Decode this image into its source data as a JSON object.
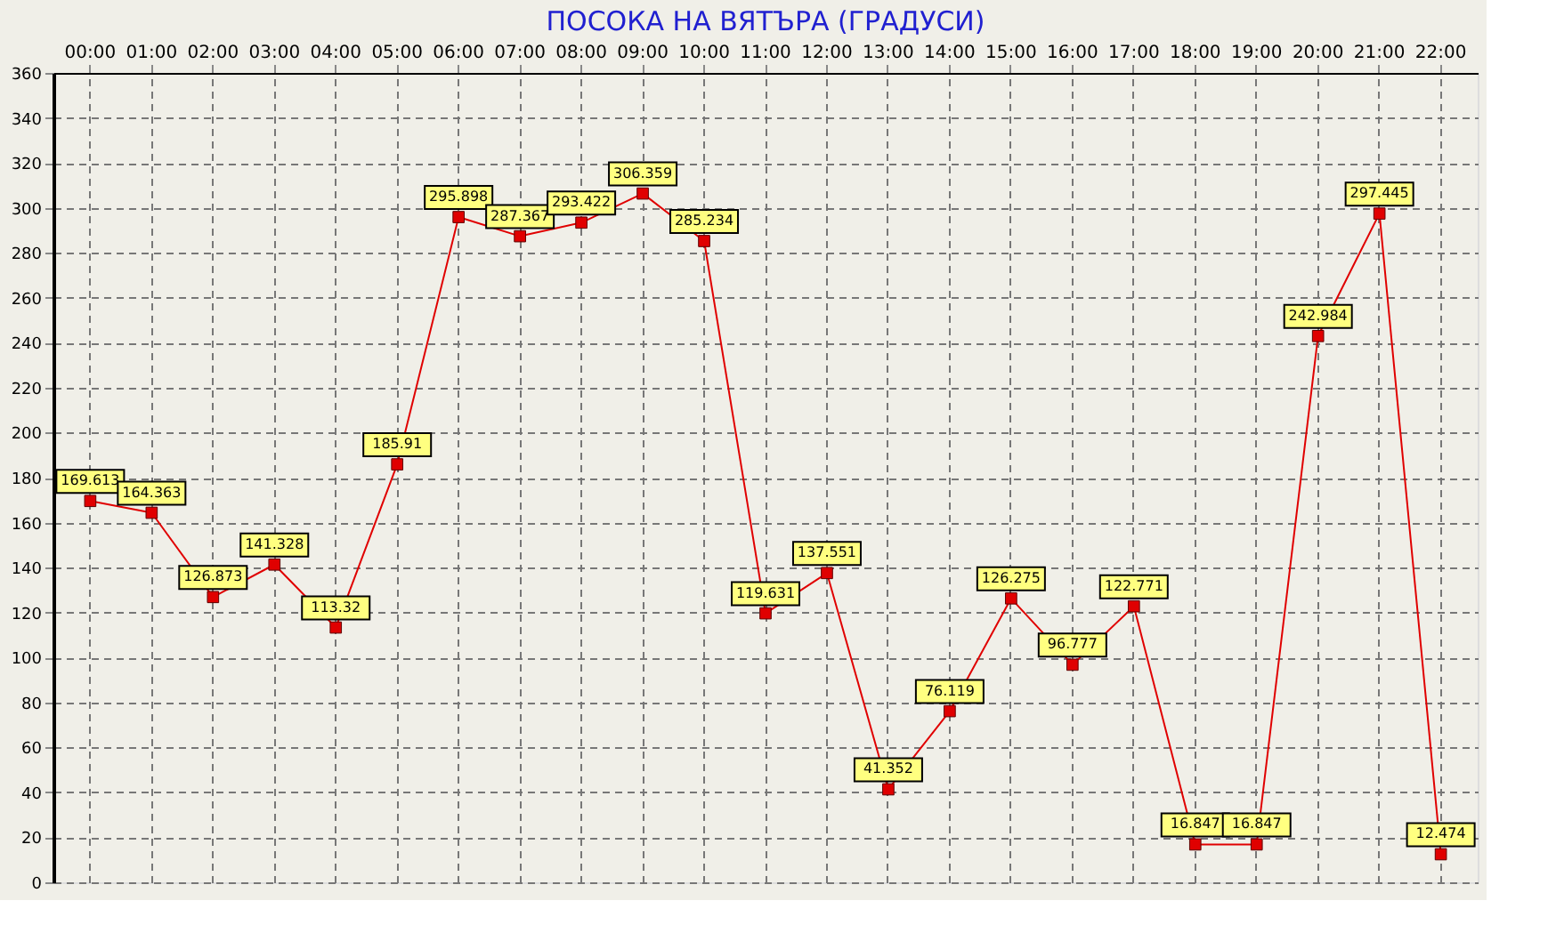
{
  "chart_data": {
    "type": "line",
    "title": "ПОСОКА НА ВЯТЪРА    (ГРАДУСИ)",
    "categories": [
      "00:00",
      "01:00",
      "02:00",
      "03:00",
      "04:00",
      "05:00",
      "06:00",
      "07:00",
      "08:00",
      "09:00",
      "10:00",
      "11:00",
      "12:00",
      "13:00",
      "14:00",
      "15:00",
      "16:00",
      "17:00",
      "18:00",
      "19:00",
      "20:00",
      "21:00",
      "22:00"
    ],
    "series": [
      {
        "color": "#e00000",
        "values": [
          169.613,
          164.363,
          126.873,
          141.328,
          113.32,
          185.91,
          295.898,
          287.367,
          293.422,
          306.359,
          285.234,
          119.631,
          137.551,
          41.352,
          76.119,
          126.275,
          96.777,
          122.771,
          16.847,
          16.847,
          242.984,
          297.445,
          12.474
        ]
      }
    ],
    "ylim": [
      0,
      360
    ],
    "yticks": [
      0,
      20,
      40,
      60,
      80,
      100,
      120,
      140,
      160,
      180,
      200,
      220,
      240,
      260,
      280,
      300,
      320,
      340,
      360
    ],
    "grid": true,
    "marker": "square",
    "line_style": "solid",
    "data_labels": true,
    "legend": false
  }
}
